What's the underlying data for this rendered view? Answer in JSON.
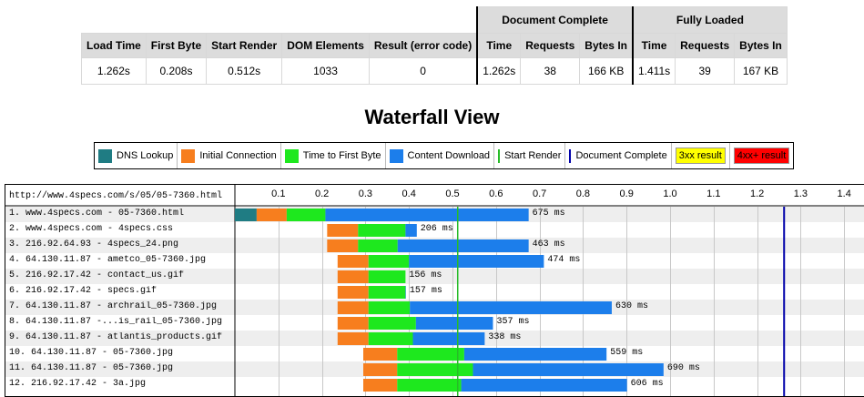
{
  "summary": {
    "groups": {
      "document_complete": "Document Complete",
      "fully_loaded": "Fully Loaded"
    },
    "headers": [
      "Load Time",
      "First Byte",
      "Start Render",
      "DOM Elements",
      "Result (error code)",
      "Time",
      "Requests",
      "Bytes In",
      "Time",
      "Requests",
      "Bytes In"
    ],
    "values": [
      "1.262s",
      "0.208s",
      "0.512s",
      "1033",
      "0",
      "1.262s",
      "38",
      "166 KB",
      "1.411s",
      "39",
      "167 KB"
    ]
  },
  "title": "Waterfall View",
  "legend": {
    "dns": "DNS Lookup",
    "connect": "Initial Connection",
    "ttfb": "Time to First Byte",
    "download": "Content Download",
    "start_render": "Start Render",
    "doc_complete": "Document Complete",
    "r3xx": "3xx result",
    "r4xx": "4xx+ result"
  },
  "colors": {
    "dns": "#1f7c83",
    "connect": "#f77e1e",
    "ttfb": "#1ee81e",
    "download": "#1c7eeb",
    "start_render": "#28bc28",
    "doc_complete": "#0000aa",
    "r3xx": "#ffff00",
    "r4xx": "#ff0000"
  },
  "waterfall": {
    "url": "http://www.4specs.com/s/05/05-7360.html",
    "ticks": [
      "0.1",
      "0.2",
      "0.3",
      "0.4",
      "0.5",
      "0.6",
      "0.7",
      "0.8",
      "0.9",
      "1.0",
      "1.1",
      "1.2",
      "1.3",
      "1.4"
    ],
    "start_render_s": 0.512,
    "doc_complete_s": 1.262,
    "rows": [
      {
        "label": "1. www.4specs.com - 05-7360.html",
        "dns": [
          0.0,
          0.05
        ],
        "connect": [
          0.05,
          0.119
        ],
        "ttfb": [
          0.119,
          0.208
        ],
        "download": [
          0.208,
          0.675
        ],
        "ms_label": "675 ms"
      },
      {
        "label": "2. www.4specs.com - 4specs.css",
        "connect": [
          0.212,
          0.283
        ],
        "ttfb": [
          0.283,
          0.392
        ],
        "download": [
          0.392,
          0.418
        ],
        "ms_label": "206 ms"
      },
      {
        "label": "3. 216.92.64.93 - 4specs_24.png",
        "connect": [
          0.212,
          0.283
        ],
        "ttfb": [
          0.283,
          0.374
        ],
        "download": [
          0.374,
          0.675
        ],
        "ms_label": "463 ms"
      },
      {
        "label": "4. 64.130.11.87 - ametco_05-7360.jpg",
        "connect": [
          0.236,
          0.307
        ],
        "ttfb": [
          0.307,
          0.4
        ],
        "download": [
          0.4,
          0.71
        ],
        "ms_label": "474 ms"
      },
      {
        "label": "5. 216.92.17.42 - contact_us.gif",
        "connect": [
          0.236,
          0.307
        ],
        "ttfb": [
          0.307,
          0.392
        ],
        "download": [
          0.392,
          0.392
        ],
        "ms_label": "156 ms"
      },
      {
        "label": "6. 216.92.17.42 - specs.gif",
        "connect": [
          0.236,
          0.307
        ],
        "ttfb": [
          0.307,
          0.392
        ],
        "download": [
          0.392,
          0.393
        ],
        "ms_label": "157 ms"
      },
      {
        "label": "7. 64.130.11.87 - archrail_05-7360.jpg",
        "connect": [
          0.236,
          0.307
        ],
        "ttfb": [
          0.307,
          0.402
        ],
        "download": [
          0.402,
          0.866
        ],
        "ms_label": "630 ms"
      },
      {
        "label": "8. 64.130.11.87 -...is_rail_05-7360.jpg",
        "connect": [
          0.236,
          0.307
        ],
        "ttfb": [
          0.307,
          0.416
        ],
        "download": [
          0.416,
          0.593
        ],
        "ms_label": "357 ms"
      },
      {
        "label": "9. 64.130.11.87 - atlantis_products.gif",
        "connect": [
          0.236,
          0.307
        ],
        "ttfb": [
          0.307,
          0.409
        ],
        "download": [
          0.409,
          0.574
        ],
        "ms_label": "338 ms"
      },
      {
        "label": "10. 64.130.11.87 - 05-7360.jpg",
        "connect": [
          0.295,
          0.373
        ],
        "ttfb": [
          0.373,
          0.527
        ],
        "download": [
          0.527,
          0.854
        ],
        "ms_label": "559 ms"
      },
      {
        "label": "11. 64.130.11.87 - 05-7360.jpg",
        "connect": [
          0.295,
          0.373
        ],
        "ttfb": [
          0.373,
          0.547
        ],
        "download": [
          0.547,
          0.985
        ],
        "ms_label": "690 ms"
      },
      {
        "label": "12. 216.92.17.42 - 3a.jpg",
        "connect": [
          0.295,
          0.373
        ],
        "ttfb": [
          0.373,
          0.52
        ],
        "download": [
          0.52,
          0.901
        ],
        "ms_label": "606 ms"
      }
    ]
  }
}
